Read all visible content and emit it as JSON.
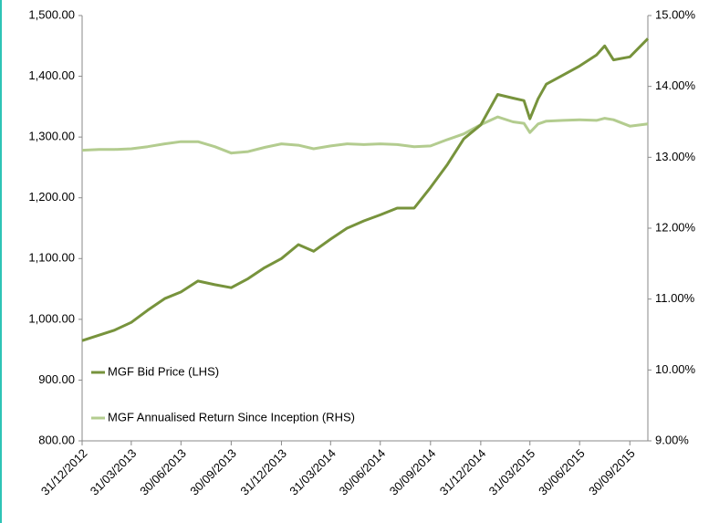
{
  "chart_data": {
    "type": "line",
    "x": [
      "31/12/2012",
      "31/01/2013",
      "28/02/2013",
      "31/03/2013",
      "30/04/2013",
      "31/05/2013",
      "30/06/2013",
      "31/07/2013",
      "31/08/2013",
      "30/09/2013",
      "31/10/2013",
      "30/11/2013",
      "31/12/2013",
      "31/01/2014",
      "28/02/2014",
      "31/03/2014",
      "30/04/2014",
      "31/05/2014",
      "30/06/2014",
      "31/07/2014",
      "31/08/2014",
      "30/09/2014",
      "31/10/2014",
      "30/11/2014",
      "31/12/2014",
      "31/01/2015",
      "28/02/2015",
      "20/03/2015",
      "31/03/2015",
      "15/04/2015",
      "30/04/2015",
      "31/05/2015",
      "30/06/2015",
      "31/07/2015",
      "15/08/2015",
      "31/08/2015",
      "30/09/2015",
      "02/11/2015"
    ],
    "series": [
      {
        "name": "MGF Bid Price (LHS)",
        "color": "#77933c",
        "axis": "y",
        "values": [
          965,
          974,
          982,
          995,
          1015,
          1034,
          1045,
          1063,
          1057,
          1052,
          1067,
          1085,
          1100,
          1123,
          1112,
          1132,
          1150,
          1162,
          1172,
          1183,
          1183,
          1217,
          1255,
          1297,
          1320,
          1370,
          1364,
          1360,
          1330,
          1363,
          1387,
          1402,
          1417,
          1435,
          1450,
          1427,
          1432,
          1462
        ]
      },
      {
        "name": "MGF Annualised Return Since Inception (RHS)",
        "color": "#b3cc8f",
        "axis": "y2",
        "values": [
          13.1,
          13.11,
          13.11,
          13.12,
          13.15,
          13.19,
          13.22,
          13.22,
          13.15,
          13.06,
          13.08,
          13.14,
          13.19,
          13.17,
          13.12,
          13.16,
          13.19,
          13.18,
          13.19,
          13.18,
          13.15,
          13.16,
          13.25,
          13.33,
          13.46,
          13.57,
          13.5,
          13.48,
          13.35,
          13.47,
          13.51,
          13.52,
          13.53,
          13.52,
          13.55,
          13.53,
          13.44,
          13.47
        ]
      }
    ],
    "xlim": [
      "31/12/2012",
      "02/11/2015"
    ],
    "xticks": [
      "31/12/2012",
      "31/03/2013",
      "30/06/2013",
      "30/09/2013",
      "31/12/2013",
      "31/03/2014",
      "30/06/2014",
      "30/09/2014",
      "31/12/2014",
      "31/03/2015",
      "30/06/2015",
      "30/09/2015"
    ],
    "ylim": [
      800,
      1500
    ],
    "yticks": [
      {
        "value": 800,
        "label": "800.00"
      },
      {
        "value": 900,
        "label": "900.00"
      },
      {
        "value": 1000,
        "label": "1,000.00"
      },
      {
        "value": 1100,
        "label": "1,100.00"
      },
      {
        "value": 1200,
        "label": "1,200.00"
      },
      {
        "value": 1300,
        "label": "1,300.00"
      },
      {
        "value": 1400,
        "label": "1,400.00"
      },
      {
        "value": 1500,
        "label": "1,500.00"
      }
    ],
    "y2lim": [
      9,
      15
    ],
    "y2ticks": [
      {
        "value": 9,
        "label": "9.00%"
      },
      {
        "value": 10,
        "label": "10.00%"
      },
      {
        "value": 11,
        "label": "11.00%"
      },
      {
        "value": 12,
        "label": "12.00%"
      },
      {
        "value": 13,
        "label": "13.00%"
      },
      {
        "value": 14,
        "label": "14.00%"
      },
      {
        "value": 15,
        "label": "15.00%"
      }
    ],
    "grid": false,
    "legend": "lower left"
  }
}
